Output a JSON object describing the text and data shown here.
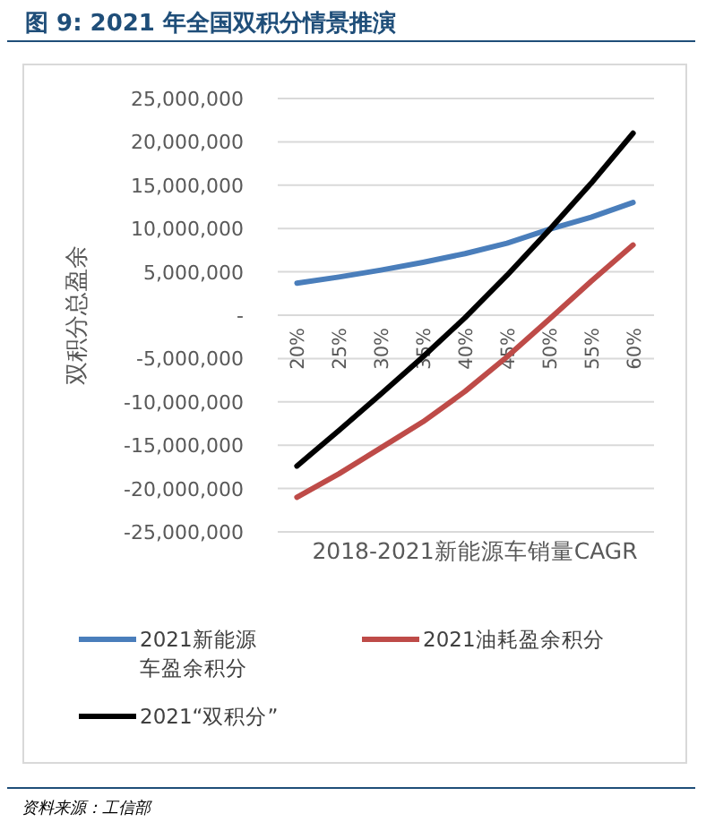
{
  "chart_data": {
    "type": "line",
    "title": "图 9:  2021 年全国双积分情景推演",
    "xlabel": "2018-2021新能源车销量CAGR",
    "ylabel": "双积分总盈余",
    "categories": [
      "20%",
      "25%",
      "30%",
      "35%",
      "40%",
      "45%",
      "50%",
      "55%",
      "60%"
    ],
    "series": [
      {
        "name": "2021新能源车盈余积分",
        "color": "#4a7ebb",
        "values": [
          3700000,
          4400000,
          5200000,
          6100000,
          7100000,
          8300000,
          9900000,
          11300000,
          13000000
        ]
      },
      {
        "name": "2021油耗盈余积分",
        "color": "#be4b48",
        "values": [
          -21000000,
          -18300000,
          -15300000,
          -12300000,
          -8800000,
          -4800000,
          -500000,
          3900000,
          8100000
        ]
      },
      {
        "name": "2021“双积分”",
        "color": "#000000",
        "values": [
          -17400000,
          -13300000,
          -9100000,
          -4800000,
          -300000,
          4600000,
          9800000,
          15200000,
          21000000
        ]
      }
    ],
    "ylim": [
      -25000000,
      25000000
    ],
    "yticks": [
      {
        "value": -25000000,
        "label": "-25,000,000"
      },
      {
        "value": -20000000,
        "label": "-20,000,000"
      },
      {
        "value": -15000000,
        "label": "-15,000,000"
      },
      {
        "value": -10000000,
        "label": "-10,000,000"
      },
      {
        "value": -5000000,
        "label": "-5,000,000"
      },
      {
        "value": 0,
        "label": "-"
      },
      {
        "value": 5000000,
        "label": "5,000,000"
      },
      {
        "value": 10000000,
        "label": "10,000,000"
      },
      {
        "value": 15000000,
        "label": "15,000,000"
      },
      {
        "value": 20000000,
        "label": "20,000,000"
      },
      {
        "value": 25000000,
        "label": "25,000,000"
      }
    ],
    "grid": "y",
    "legend": "bottom",
    "line_style": "solid",
    "marker": "none",
    "annotations": [
      "资料来源：工信部"
    ]
  }
}
